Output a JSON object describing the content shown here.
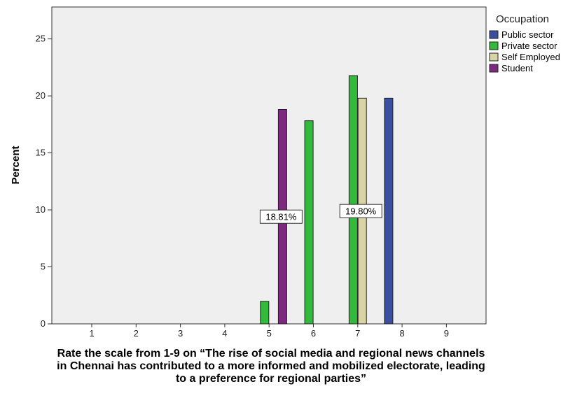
{
  "chart_data": {
    "type": "bar",
    "x_ticks": [
      "1",
      "2",
      "3",
      "4",
      "5",
      "6",
      "7",
      "8",
      "9"
    ],
    "categories": [
      "5",
      "6",
      "7",
      "8"
    ],
    "series": [
      {
        "name": "Public sector",
        "color": "#3a4fa0",
        "values": [
          0,
          0,
          0,
          19.8
        ]
      },
      {
        "name": "Private sector",
        "color": "#33b93c",
        "values": [
          1.98,
          17.82,
          21.78,
          0
        ]
      },
      {
        "name": "Self Employed",
        "color": "#d9d4a6",
        "values": [
          0,
          0,
          19.8,
          0
        ]
      },
      {
        "name": "Student",
        "color": "#7c2a7e",
        "values": [
          18.81,
          0,
          0,
          0
        ]
      }
    ],
    "data_labels": [
      {
        "text": "18.81%",
        "category": "5",
        "series": "Student",
        "value": 18.81
      },
      {
        "text": "19.80%",
        "category": "7",
        "series": "Self Employed",
        "value": 19.8
      }
    ],
    "ylabel": "Percent",
    "xlabel": "Rate the scale from 1-9 on “The rise of social media and regional news channels in Chennai has contributed to a more informed and mobilized electorate, leading to a preference for regional parties”",
    "ylim": [
      0,
      27.8
    ],
    "yticks": [
      0,
      5,
      10,
      15,
      20,
      25
    ],
    "legend_title": "Occupation",
    "legend_position": "top-right",
    "plot_background": "#efefef",
    "grid": false
  }
}
